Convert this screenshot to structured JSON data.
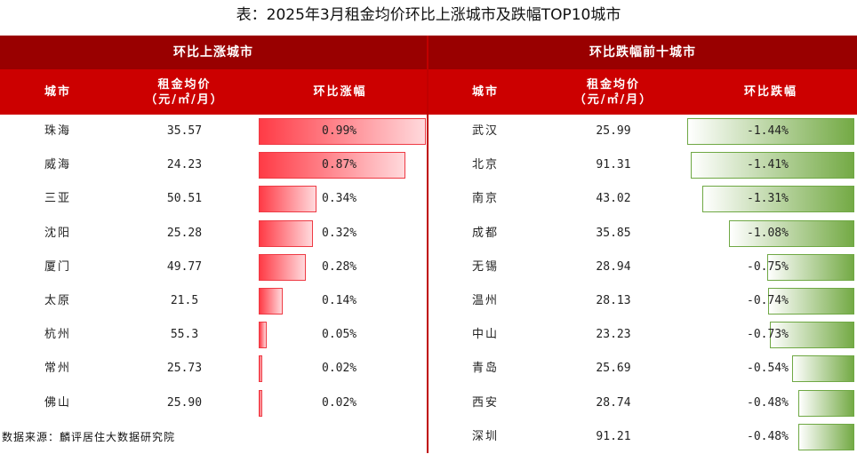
{
  "title": "表：2025年3月租金均价环比上涨城市及跌幅TOP10城市",
  "left": {
    "header": "环比上涨城市",
    "columns": [
      "城市",
      "租金均价",
      "（元/㎡/月）",
      "环比涨幅"
    ]
  },
  "right": {
    "header": "环比跌幅前十城市",
    "columns": [
      "城市",
      "租金均价",
      "（元/㎡/月）",
      "环比跌幅"
    ]
  },
  "source": "数据来源：麟评居住大数据研究院",
  "colors": {
    "up": "#ff3b46",
    "down": "#74aa45",
    "header_dark": "#990000",
    "header": "#cc0000"
  },
  "chart_data": {
    "type": "table",
    "tables": [
      {
        "name": "环比上涨城市",
        "rows": [
          {
            "city": "珠海",
            "rent": "35.57",
            "change": 0.99,
            "label": "0.99%"
          },
          {
            "city": "威海",
            "rent": "24.23",
            "change": 0.87,
            "label": "0.87%"
          },
          {
            "city": "三亚",
            "rent": "50.51",
            "change": 0.34,
            "label": "0.34%"
          },
          {
            "city": "沈阳",
            "rent": "25.28",
            "change": 0.32,
            "label": "0.32%"
          },
          {
            "city": "厦门",
            "rent": "49.77",
            "change": 0.28,
            "label": "0.28%"
          },
          {
            "city": "太原",
            "rent": "21.5",
            "change": 0.14,
            "label": "0.14%"
          },
          {
            "city": "杭州",
            "rent": "55.3",
            "change": 0.05,
            "label": "0.05%"
          },
          {
            "city": "常州",
            "rent": "25.73",
            "change": 0.02,
            "label": "0.02%"
          },
          {
            "city": "佛山",
            "rent": "25.90",
            "change": 0.02,
            "label": "0.02%"
          }
        ]
      },
      {
        "name": "环比跌幅前十城市",
        "rows": [
          {
            "city": "武汉",
            "rent": "25.99",
            "change": -1.44,
            "label": "-1.44%"
          },
          {
            "city": "北京",
            "rent": "91.31",
            "change": -1.41,
            "label": "-1.41%"
          },
          {
            "city": "南京",
            "rent": "43.02",
            "change": -1.31,
            "label": "-1.31%"
          },
          {
            "city": "成都",
            "rent": "35.85",
            "change": -1.08,
            "label": "-1.08%"
          },
          {
            "city": "无锡",
            "rent": "28.94",
            "change": -0.75,
            "label": "-0.75%"
          },
          {
            "city": "温州",
            "rent": "28.13",
            "change": -0.74,
            "label": "-0.74%"
          },
          {
            "city": "中山",
            "rent": "23.23",
            "change": -0.73,
            "label": "-0.73%"
          },
          {
            "city": "青岛",
            "rent": "25.69",
            "change": -0.54,
            "label": "-0.54%"
          },
          {
            "city": "西安",
            "rent": "28.74",
            "change": -0.48,
            "label": "-0.48%"
          },
          {
            "city": "深圳",
            "rent": "91.21",
            "change": -0.48,
            "label": "-0.48%"
          }
        ]
      }
    ]
  }
}
